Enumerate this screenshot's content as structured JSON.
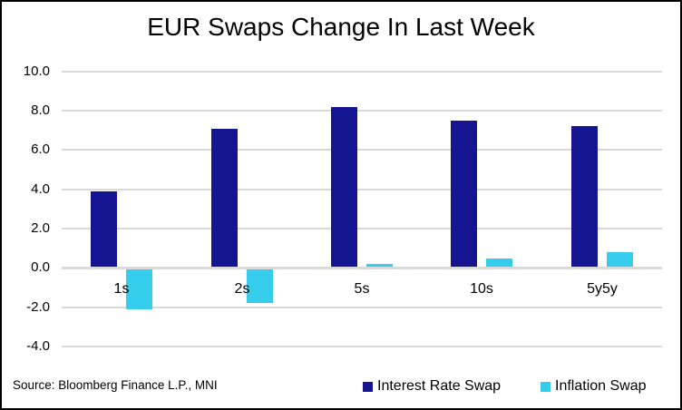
{
  "title": "EUR Swaps Change In Last Week",
  "source": "Source: Bloomberg Finance L.P., MNI",
  "colors": {
    "interest_rate_swap": "#151591",
    "inflation_swap": "#35cdeb",
    "gridline": "#d9d9d9",
    "text": "#000000",
    "frame_border": "#000000",
    "background": "#ffffff"
  },
  "chart_data": {
    "type": "bar",
    "title": "EUR Swaps Change In Last Week",
    "categories": [
      "1s",
      "2s",
      "5s",
      "10s",
      "5y5y"
    ],
    "series": [
      {
        "name": "Interest Rate Swap",
        "color": "#151591",
        "values": [
          3.9,
          7.1,
          8.2,
          7.5,
          7.2
        ]
      },
      {
        "name": "Inflation Swap",
        "color": "#35cdeb",
        "values": [
          -2.1,
          -1.8,
          0.2,
          0.5,
          0.8
        ]
      }
    ],
    "xlabel": "",
    "ylabel": "",
    "ylim": [
      -4.0,
      10.0
    ],
    "y_ticks": [
      10.0,
      8.0,
      6.0,
      4.0,
      2.0,
      0.0,
      -2.0,
      -4.0
    ],
    "tick_decimals": 1,
    "grid": "horizontal",
    "legend_position": "bottom-right"
  }
}
